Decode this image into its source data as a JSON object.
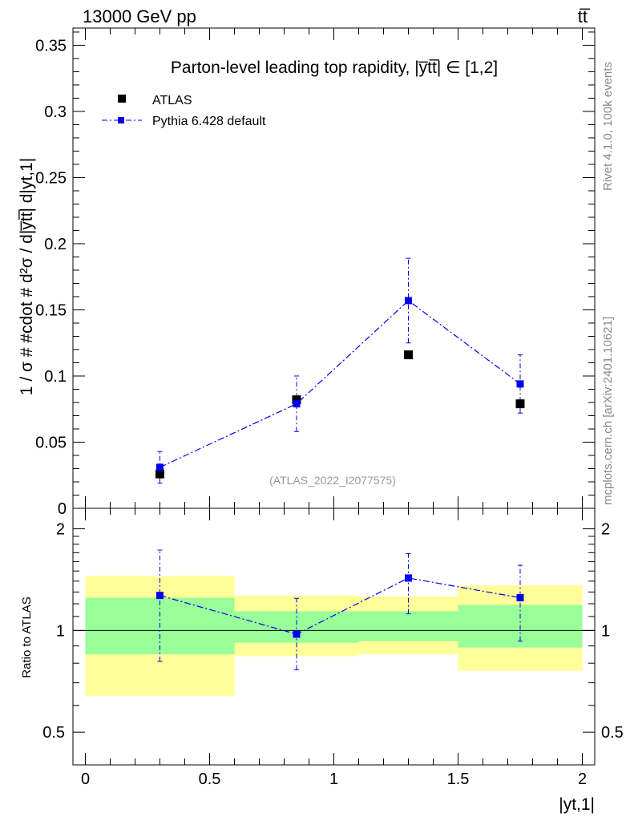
{
  "header": {
    "energy_label": "13000 GeV pp",
    "process_label": "tt̅"
  },
  "side_labels": {
    "rivet": "Rivet 4.1.0,  100k events",
    "mcplots": "mcplots.cern.ch [arXiv:2401.10621]"
  },
  "colors": {
    "atlas": "#000000",
    "pythia": "#0000ee",
    "band_outer": "#ffff99",
    "band_inner": "#99ff99"
  },
  "chart_data": [
    {
      "type": "scatter",
      "title": "Parton-level leading top rapidity, |y̅tt̅| ∈ [1,2]",
      "ylabel": "1 / σ # #cdot # d²σ / d|y̅tt̅| d|yt,1|",
      "xlim": [
        -0.05,
        2.05
      ],
      "ylim": [
        0,
        0.363
      ],
      "yticks": [
        0,
        0.05,
        0.1,
        0.15,
        0.2,
        0.25,
        0.3,
        0.35
      ],
      "ytick_labels": [
        "0",
        "0.05",
        "0.1",
        "0.15",
        "0.2",
        "0.25",
        "0.3",
        "0.35"
      ],
      "watermark": "(ATLAS_2022_I2077575)",
      "legend": {
        "position": "top-left",
        "entries": [
          "ATLAS",
          "Pythia 6.428 default"
        ]
      },
      "series": [
        {
          "name": "ATLAS",
          "style": "markers",
          "x": [
            0.3,
            0.85,
            1.3,
            1.75
          ],
          "y": [
            0.026,
            0.082,
            0.116,
            0.079
          ],
          "yerr_lo": [
            0.001,
            0.002,
            0.002,
            0.002
          ],
          "yerr_hi": [
            0.001,
            0.002,
            0.002,
            0.002
          ]
        },
        {
          "name": "Pythia 6.428 default",
          "style": "dashdot",
          "x": [
            0.3,
            0.85,
            1.3,
            1.75
          ],
          "y": [
            0.031,
            0.079,
            0.157,
            0.094
          ],
          "yerr_lo": [
            0.012,
            0.021,
            0.032,
            0.022
          ],
          "yerr_hi": [
            0.012,
            0.021,
            0.032,
            0.022
          ]
        }
      ]
    },
    {
      "type": "scatter",
      "ylabel": "Ratio to ATLAS",
      "xlabel": "|yt,1|",
      "xlim": [
        -0.05,
        2.05
      ],
      "ylim": [
        0.4,
        2.3
      ],
      "yticks": [
        0.5,
        1,
        2
      ],
      "ytick_labels": [
        "0.5",
        "1",
        "2"
      ],
      "xticks": [
        0,
        0.5,
        1,
        1.5,
        2
      ],
      "xtick_labels": [
        "0",
        "0.5",
        "1",
        "1.5",
        "2"
      ],
      "reference_line": 1,
      "bands": [
        {
          "xlo": 0.0,
          "xhi": 0.6,
          "outer_lo": 0.64,
          "outer_hi": 1.45,
          "inner_lo": 0.85,
          "inner_hi": 1.25
        },
        {
          "xlo": 0.6,
          "xhi": 1.1,
          "outer_lo": 0.84,
          "outer_hi": 1.27,
          "inner_lo": 0.92,
          "inner_hi": 1.14
        },
        {
          "xlo": 1.1,
          "xhi": 1.5,
          "outer_lo": 0.85,
          "outer_hi": 1.26,
          "inner_lo": 0.93,
          "inner_hi": 1.14
        },
        {
          "xlo": 1.5,
          "xhi": 2.0,
          "outer_lo": 0.76,
          "outer_hi": 1.36,
          "inner_lo": 0.89,
          "inner_hi": 1.19
        }
      ],
      "series": [
        {
          "name": "Pythia 6.428 default / ATLAS",
          "style": "dashdot",
          "x": [
            0.3,
            0.85,
            1.3,
            1.75
          ],
          "y": [
            1.27,
            0.975,
            1.43,
            1.25
          ],
          "yerr_lo": [
            0.46,
            0.21,
            0.31,
            0.32
          ],
          "yerr_hi": [
            0.46,
            0.27,
            0.26,
            0.31
          ]
        }
      ]
    }
  ]
}
